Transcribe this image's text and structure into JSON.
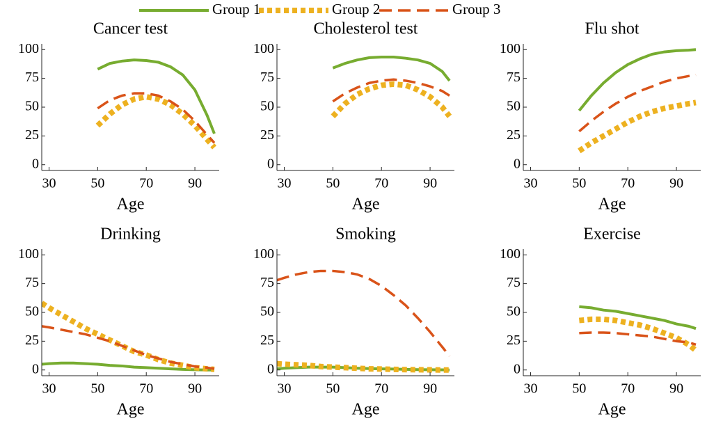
{
  "legend": [
    {
      "name": "Group 1",
      "color": "#77ac30",
      "style": "solid"
    },
    {
      "name": "Group 2",
      "color": "#edb120",
      "style": "dotted"
    },
    {
      "name": "Group 3",
      "color": "#d95319",
      "style": "dashed"
    }
  ],
  "chart_data": [
    {
      "type": "line",
      "title": "Cancer test",
      "x_label": "Age",
      "x": [
        50,
        55,
        60,
        65,
        70,
        75,
        80,
        85,
        90,
        95,
        98
      ],
      "series": [
        {
          "values": [
            83,
            88,
            90,
            91,
            90.5,
            89,
            85,
            78,
            65,
            43,
            27
          ]
        },
        {
          "values": [
            34,
            44,
            52,
            57,
            59,
            57,
            52,
            44,
            34,
            22,
            15
          ]
        },
        {
          "values": [
            49,
            56,
            60,
            62,
            62,
            60,
            55,
            48,
            38,
            26,
            19
          ]
        }
      ],
      "xlim": [
        27,
        100
      ],
      "xticks": [
        30,
        50,
        70,
        90
      ],
      "ylim": [
        -5,
        105
      ],
      "yticks": [
        0,
        25,
        50,
        75,
        100
      ]
    },
    {
      "type": "line",
      "title": "Cholesterol test",
      "x_label": "Age",
      "x": [
        50,
        55,
        60,
        65,
        70,
        75,
        80,
        85,
        90,
        95,
        98
      ],
      "series": [
        {
          "values": [
            84,
            88,
            91,
            93,
            93.5,
            93.5,
            92.5,
            91,
            88,
            81,
            73
          ]
        },
        {
          "values": [
            42,
            53,
            61,
            66,
            69,
            70,
            69,
            65,
            59,
            50,
            42
          ]
        },
        {
          "values": [
            55,
            62,
            67,
            71,
            73,
            74,
            73,
            71,
            68,
            64,
            60
          ]
        }
      ],
      "xlim": [
        27,
        100
      ],
      "xticks": [
        30,
        50,
        70,
        90
      ],
      "ylim": [
        -5,
        105
      ],
      "yticks": [
        0,
        25,
        50,
        75,
        100
      ]
    },
    {
      "type": "line",
      "title": "Flu shot",
      "x_label": "Age",
      "x": [
        50,
        55,
        60,
        65,
        70,
        75,
        80,
        85,
        90,
        95,
        98
      ],
      "series": [
        {
          "values": [
            47,
            60,
            71,
            80,
            87,
            92,
            96,
            98,
            99,
            99.5,
            100
          ]
        },
        {
          "values": [
            12,
            19,
            25,
            31,
            37,
            42,
            46,
            49,
            51,
            53,
            54
          ]
        },
        {
          "values": [
            29,
            38,
            46,
            53,
            59,
            64,
            68,
            72,
            75,
            77,
            78
          ]
        }
      ],
      "xlim": [
        27,
        100
      ],
      "xticks": [
        30,
        50,
        70,
        90
      ],
      "ylim": [
        -5,
        105
      ],
      "yticks": [
        0,
        25,
        50,
        75,
        100
      ]
    },
    {
      "type": "line",
      "title": "Drinking",
      "x_label": "Age",
      "x": [
        27,
        30,
        35,
        40,
        45,
        50,
        55,
        60,
        65,
        70,
        75,
        80,
        85,
        90,
        95,
        98
      ],
      "series": [
        {
          "values": [
            5,
            5.5,
            6,
            6,
            5.5,
            5,
            4,
            3.5,
            2.5,
            2,
            1.5,
            1,
            0.5,
            0.2,
            0,
            0
          ]
        },
        {
          "values": [
            58,
            54,
            48,
            42,
            36,
            31,
            26,
            21,
            16,
            13,
            9,
            6,
            4,
            2,
            1,
            0.5
          ]
        },
        {
          "values": [
            38,
            37,
            35,
            33,
            31,
            28,
            25,
            21,
            17,
            13,
            10,
            7,
            5,
            3,
            2,
            1
          ]
        }
      ],
      "xlim": [
        27,
        100
      ],
      "xticks": [
        30,
        50,
        70,
        90
      ],
      "ylim": [
        -5,
        105
      ],
      "yticks": [
        0,
        25,
        50,
        75,
        100
      ]
    },
    {
      "type": "line",
      "title": "Smoking",
      "x_label": "Age",
      "x": [
        27,
        30,
        35,
        40,
        45,
        50,
        55,
        60,
        65,
        70,
        75,
        80,
        85,
        90,
        95,
        98
      ],
      "series": [
        {
          "values": [
            1,
            1.5,
            2,
            2.5,
            2.5,
            2.5,
            2,
            1.5,
            1.2,
            1,
            0.8,
            0.5,
            0.3,
            0.2,
            0.1,
            0
          ]
        },
        {
          "values": [
            5.5,
            5,
            4.5,
            4,
            3,
            2.5,
            2,
            1.5,
            1,
            0.8,
            0.5,
            0.3,
            0.2,
            0.1,
            0,
            0
          ]
        },
        {
          "values": [
            78,
            80,
            83,
            85,
            86,
            86,
            85,
            83,
            79,
            73,
            65,
            56,
            45,
            33,
            20,
            12
          ]
        }
      ],
      "xlim": [
        27,
        100
      ],
      "xticks": [
        30,
        50,
        70,
        90
      ],
      "ylim": [
        -5,
        105
      ],
      "yticks": [
        0,
        25,
        50,
        75,
        100
      ]
    },
    {
      "type": "line",
      "title": "Exercise",
      "x_label": "Age",
      "x": [
        50,
        55,
        60,
        65,
        70,
        75,
        80,
        85,
        90,
        95,
        98
      ],
      "series": [
        {
          "values": [
            55,
            54,
            52,
            51,
            49,
            47,
            45,
            43,
            40,
            38,
            36
          ]
        },
        {
          "values": [
            43,
            44,
            44,
            43,
            41,
            39,
            36,
            32,
            28,
            22,
            17
          ]
        },
        {
          "values": [
            32,
            32.5,
            32.5,
            32,
            31,
            30,
            29,
            27,
            25,
            24,
            22
          ]
        }
      ],
      "xlim": [
        27,
        100
      ],
      "xticks": [
        30,
        50,
        70,
        90
      ],
      "ylim": [
        -5,
        105
      ],
      "yticks": [
        0,
        25,
        50,
        75,
        100
      ]
    }
  ]
}
